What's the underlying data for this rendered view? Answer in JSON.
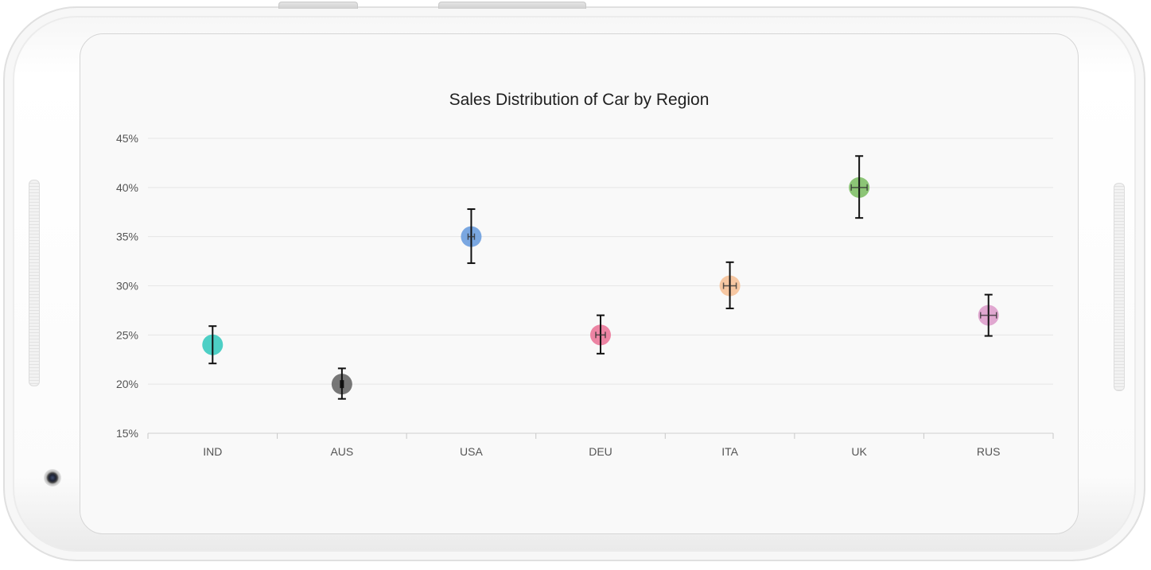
{
  "chart_data": {
    "type": "scatter",
    "title": "Sales Distribution of Car by Region",
    "xlabel": "",
    "ylabel": "",
    "categories": [
      "IND",
      "AUS",
      "USA",
      "DEU",
      "ITA",
      "UK",
      "RUS"
    ],
    "values": [
      24,
      20,
      35,
      25,
      30,
      40,
      27
    ],
    "error_low": [
      22.1,
      18.5,
      32.3,
      23.1,
      27.7,
      36.9,
      24.9
    ],
    "error_high": [
      25.9,
      21.6,
      37.8,
      27.0,
      32.4,
      43.2,
      29.1
    ],
    "colors": [
      "#3ecbc0",
      "#6b6b6b",
      "#6f9fde",
      "#ea7a9b",
      "#f5c29a",
      "#82c06a",
      "#dda0cc"
    ],
    "ylim": [
      15,
      45
    ],
    "yticks": [
      15,
      20,
      25,
      30,
      35,
      40,
      45
    ],
    "ytick_labels": [
      "15%",
      "20%",
      "25%",
      "30%",
      "35%",
      "40%",
      "45%"
    ],
    "grid": true,
    "legend": false
  }
}
